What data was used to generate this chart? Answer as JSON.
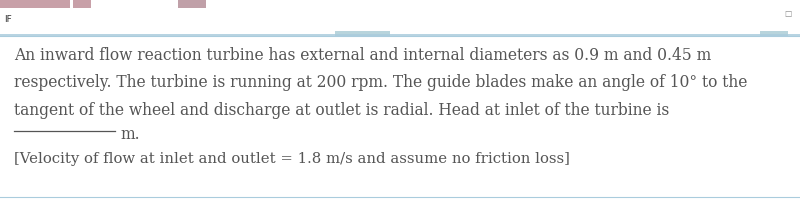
{
  "top_bar_color": "#cce8f0",
  "white_bg": "#ffffff",
  "line1": "An inward flow reaction turbine has external and internal diameters as 0.9 m and 0.45 m",
  "line2": "respectively. The turbine is running at 200 rpm. The guide blades make an angle of 10° to the",
  "line3": "tangent of the wheel and discharge at outlet is radial. Head at inlet of the turbine is",
  "line4_m": "          m.",
  "line5": "[Velocity of flow at inlet and outlet = 1.8 m/s and assume no friction loss]",
  "font_size": 11.2,
  "text_color": "#555555",
  "font_family": "DejaVu Serif",
  "tab_colors": [
    "#c8a0a8",
    "#b89098",
    "#c0a0a8"
  ],
  "tab_bg": "#c8e0e8",
  "separator_color": "#aaccdd",
  "underline_color": "#555555"
}
